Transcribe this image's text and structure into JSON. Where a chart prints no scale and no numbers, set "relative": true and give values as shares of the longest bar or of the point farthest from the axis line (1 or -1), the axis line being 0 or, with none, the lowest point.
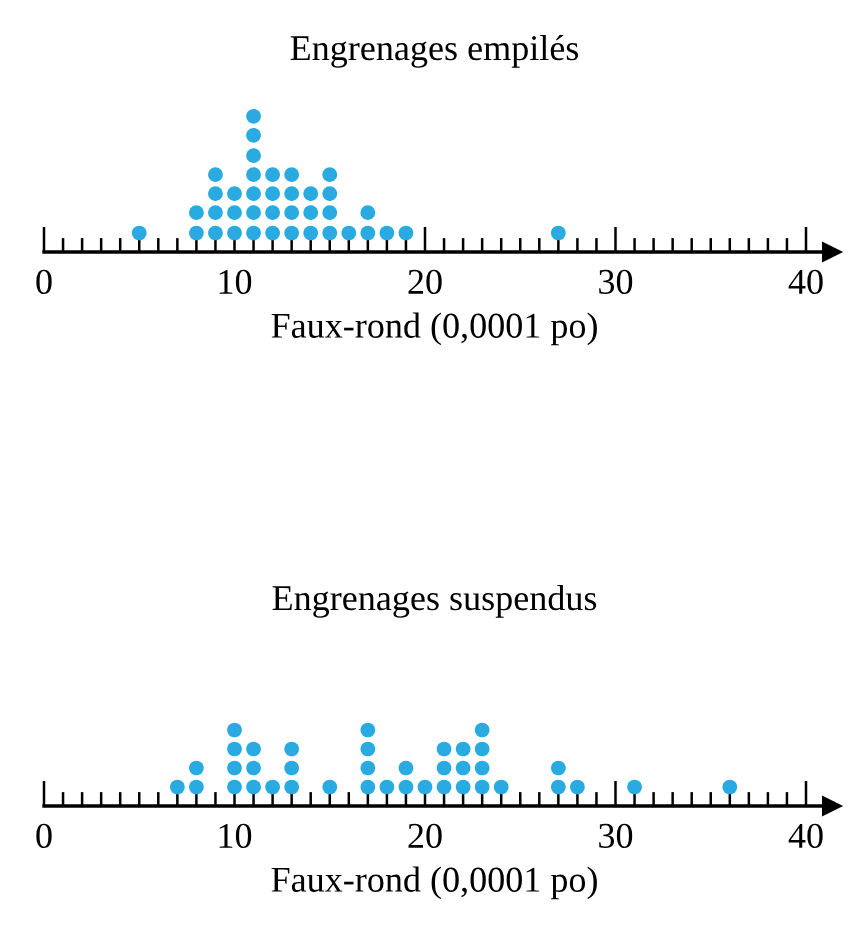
{
  "chart_data": [
    {
      "type": "scatter",
      "title": "Engrenages empilés",
      "xlabel": "Faux-rond (0,0001 po)",
      "marker": "circle",
      "color": "#29abe2",
      "relative": true,
      "x": [
        5,
        8,
        8,
        9,
        9,
        9,
        9,
        10,
        10,
        10,
        11,
        11,
        11,
        11,
        11,
        11,
        11,
        12,
        12,
        12,
        12,
        13,
        13,
        13,
        13,
        14,
        14,
        14,
        15,
        15,
        15,
        15,
        16,
        17,
        17,
        18,
        19,
        27
      ],
      "values": [
        0.14,
        0.14,
        0.29,
        0.14,
        0.29,
        0.43,
        0.57,
        0.14,
        0.29,
        0.43,
        0.14,
        0.29,
        0.43,
        0.57,
        0.71,
        0.86,
        1,
        0.14,
        0.29,
        0.43,
        0.57,
        0.14,
        0.29,
        0.43,
        0.57,
        0.14,
        0.29,
        0.43,
        0.14,
        0.29,
        0.43,
        0.57,
        0.14,
        0.14,
        0.29,
        0.14,
        0.14,
        0.14
      ],
      "xlim": [
        0,
        41
      ],
      "xticks": [
        0,
        {
          "value": 1,
          "label": null
        },
        {
          "value": 2,
          "label": null
        },
        {
          "value": 3,
          "label": null
        },
        {
          "value": 4,
          "label": null
        },
        {
          "value": 5,
          "label": null
        },
        {
          "value": 6,
          "label": null
        },
        {
          "value": 7,
          "label": null
        },
        {
          "value": 8,
          "label": null
        },
        {
          "value": 9,
          "label": null
        },
        10,
        {
          "value": 11,
          "label": null
        },
        {
          "value": 12,
          "label": null
        },
        {
          "value": 13,
          "label": null
        },
        {
          "value": 14,
          "label": null
        },
        {
          "value": 15,
          "label": null
        },
        {
          "value": 16,
          "label": null
        },
        {
          "value": 17,
          "label": null
        },
        {
          "value": 18,
          "label": null
        },
        {
          "value": 19,
          "label": null
        },
        20,
        {
          "value": 21,
          "label": null
        },
        {
          "value": 22,
          "label": null
        },
        {
          "value": 23,
          "label": null
        },
        {
          "value": 24,
          "label": null
        },
        {
          "value": 25,
          "label": null
        },
        {
          "value": 26,
          "label": null
        },
        {
          "value": 27,
          "label": null
        },
        {
          "value": 28,
          "label": null
        },
        {
          "value": 29,
          "label": null
        },
        30,
        {
          "value": 31,
          "label": null
        },
        {
          "value": 32,
          "label": null
        },
        {
          "value": 33,
          "label": null
        },
        {
          "value": 34,
          "label": null
        },
        {
          "value": 35,
          "label": null
        },
        {
          "value": 36,
          "label": null
        },
        {
          "value": 37,
          "label": null
        },
        {
          "value": 38,
          "label": null
        },
        {
          "value": 39,
          "label": null
        },
        40
      ],
      "tick_labels": "x"
    },
    {
      "type": "scatter",
      "title": "Engrenages suspendus",
      "xlabel": "Faux-rond (0,0001 po)",
      "marker": "circle",
      "color": "#29abe2",
      "relative": true,
      "x": [
        7,
        8,
        8,
        10,
        10,
        10,
        10,
        11,
        11,
        11,
        12,
        13,
        13,
        13,
        15,
        17,
        17,
        17,
        17,
        18,
        19,
        19,
        20,
        21,
        21,
        21,
        22,
        22,
        22,
        23,
        23,
        23,
        23,
        24,
        27,
        27,
        28,
        31,
        36
      ],
      "values": [
        0.25,
        0.25,
        0.5,
        0.25,
        0.5,
        0.75,
        1,
        0.25,
        0.5,
        0.75,
        0.25,
        0.25,
        0.5,
        0.75,
        0.25,
        0.25,
        0.5,
        0.75,
        1,
        0.25,
        0.25,
        0.5,
        0.25,
        0.25,
        0.5,
        0.75,
        0.25,
        0.5,
        0.75,
        0.25,
        0.5,
        0.75,
        1,
        0.25,
        0.25,
        0.5,
        0.25,
        0.25,
        0.25
      ],
      "xlim": [
        0,
        41
      ],
      "xticks": [
        0,
        {
          "value": 1,
          "label": null
        },
        {
          "value": 2,
          "label": null
        },
        {
          "value": 3,
          "label": null
        },
        {
          "value": 4,
          "label": null
        },
        {
          "value": 5,
          "label": null
        },
        {
          "value": 6,
          "label": null
        },
        {
          "value": 7,
          "label": null
        },
        {
          "value": 8,
          "label": null
        },
        {
          "value": 9,
          "label": null
        },
        10,
        {
          "value": 11,
          "label": null
        },
        {
          "value": 12,
          "label": null
        },
        {
          "value": 13,
          "label": null
        },
        {
          "value": 14,
          "label": null
        },
        {
          "value": 15,
          "label": null
        },
        {
          "value": 16,
          "label": null
        },
        {
          "value": 17,
          "label": null
        },
        {
          "value": 18,
          "label": null
        },
        {
          "value": 19,
          "label": null
        },
        20,
        {
          "value": 21,
          "label": null
        },
        {
          "value": 22,
          "label": null
        },
        {
          "value": 23,
          "label": null
        },
        {
          "value": 24,
          "label": null
        },
        {
          "value": 25,
          "label": null
        },
        {
          "value": 26,
          "label": null
        },
        {
          "value": 27,
          "label": null
        },
        {
          "value": 28,
          "label": null
        },
        {
          "value": 29,
          "label": null
        },
        30,
        {
          "value": 31,
          "label": null
        },
        {
          "value": 32,
          "label": null
        },
        {
          "value": 33,
          "label": null
        },
        {
          "value": 34,
          "label": null
        },
        {
          "value": 35,
          "label": null
        },
        {
          "value": 36,
          "label": null
        },
        {
          "value": 37,
          "label": null
        },
        {
          "value": 38,
          "label": null
        },
        {
          "value": 39,
          "label": null
        },
        40
      ],
      "tick_labels": "x"
    }
  ]
}
